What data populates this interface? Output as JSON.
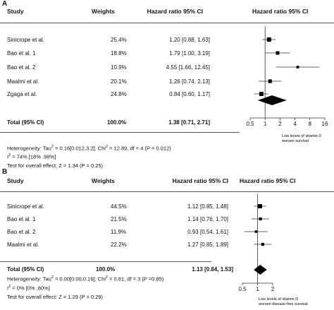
{
  "panels": [
    {
      "letter": "A",
      "headers": {
        "study": "Study",
        "weights": "Weights",
        "hr": "Hazard ratio 95% CI",
        "plot": "Hazard ratio 95% CI"
      },
      "rows": [
        {
          "study": "Sinicrope et al.",
          "weight": "25.4%",
          "ci_text": "1.20 [0.88,  1.63]"
        },
        {
          "study": "Bao et al. 1",
          "weight": "18.8%",
          "ci_text": "1.79 [1.00,  3.19]"
        },
        {
          "study": "Bao et al. 2",
          "weight": "10.9%",
          "ci_text": "4.55 [1.66, 12.45]"
        },
        {
          "study": "Maalmi et al.",
          "weight": "20.1%",
          "ci_text": "1.26 [0.74,  2.13]"
        },
        {
          "study": "Zgaga et al.",
          "weight": "24.8%",
          "ci_text": "0.84 [0.60,  1.17]"
        }
      ],
      "total": {
        "label": "Total (95% CI)",
        "weight": "100.0%",
        "ci_text": "1.38 [0.71,  2.71]"
      },
      "footer": {
        "het_1": "Heterogeneity: Tau",
        "het_sup1": "2",
        "het_2": " = 0.16[0.012,3.2]; Chi",
        "het_sup2": "2",
        "het_3": " = 12.89, df = 4 (P = 0.012)",
        "i2_1": "I",
        "i2_sup": "2",
        "i2_2": " = 74% [18% ,98%]",
        "test": "Test for overall effect: Z = 1.34 (P = 0.25)"
      },
      "annotation": [
        "Low levels of vitamin D",
        "worsen survival"
      ]
    },
    {
      "letter": "B",
      "headers": {
        "study": "Study",
        "weights": "Weights",
        "hr": "Hazard ratio 95% CI",
        "plot": "Hazard ratio 95% CI"
      },
      "rows": [
        {
          "study": "Sinicrope et al.",
          "weight": "44.5%",
          "ci_text": "1.12 [0.85, 1.48]"
        },
        {
          "study": "Bao et al. 1",
          "weight": "21.5%",
          "ci_text": "1.14 [0.76, 1.70]"
        },
        {
          "study": "Bao et al. 2",
          "weight": "11.9%",
          "ci_text": "0.93 [0.54, 1.61]"
        },
        {
          "study": "Maalmi et al.",
          "weight": "22.2%",
          "ci_text": "1.27 [0.85, 1.89]"
        }
      ],
      "total": {
        "label": "Total (95% CI)",
        "weight": "100.0%",
        "ci_text": "1.13 [0.84,  1.53]"
      },
      "footer": {
        "het_1": "Heterogeneity: Tau",
        "het_sup1": "2",
        "het_2": " = 0.00[0.00,0.16]; Chi",
        "het_sup2": "2",
        "het_3": " = 0.81, df = 3 (P =0.85)",
        "i2_1": "I",
        "i2_sup": "2",
        "i2_2": " = 0% [0% ,80%]",
        "test": "Test for overall effect: Z = 1.29 (P = 0.29)"
      },
      "annotation": [
        "Low levels of vitamin D",
        "worsen disease-free survival"
      ]
    }
  ],
  "chart_data": [
    {
      "type": "forest",
      "x_scale": "log",
      "xlim": [
        0.5,
        16
      ],
      "x_ticks": [
        "0.5",
        "1",
        "2",
        "4",
        "8",
        "16"
      ],
      "reference_line": 1,
      "studies": [
        {
          "name": "Sinicrope et al.",
          "hr": 1.2,
          "lo": 0.88,
          "hi": 1.63,
          "weight": 25.4
        },
        {
          "name": "Bao et al. 1",
          "hr": 1.79,
          "lo": 1.0,
          "hi": 3.19,
          "weight": 18.8
        },
        {
          "name": "Bao et al. 2",
          "hr": 4.55,
          "lo": 1.66,
          "hi": 12.45,
          "weight": 10.9
        },
        {
          "name": "Maalmi et al.",
          "hr": 1.26,
          "lo": 0.74,
          "hi": 2.13,
          "weight": 20.1
        },
        {
          "name": "Zgaga et al.",
          "hr": 0.84,
          "lo": 0.6,
          "hi": 1.17,
          "weight": 24.8
        }
      ],
      "pooled": {
        "hr": 1.38,
        "lo": 0.71,
        "hi": 2.71
      }
    },
    {
      "type": "forest",
      "x_scale": "log",
      "xlim": [
        0.5,
        2
      ],
      "x_ticks": [
        "0.5",
        "1",
        "2"
      ],
      "reference_line": 1,
      "studies": [
        {
          "name": "Sinicrope et al.",
          "hr": 1.12,
          "lo": 0.85,
          "hi": 1.48,
          "weight": 44.5
        },
        {
          "name": "Bao et al. 1",
          "hr": 1.14,
          "lo": 0.76,
          "hi": 1.7,
          "weight": 21.5
        },
        {
          "name": "Bao et al. 2",
          "hr": 0.93,
          "lo": 0.54,
          "hi": 1.61,
          "weight": 11.9
        },
        {
          "name": "Maalmi et al.",
          "hr": 1.27,
          "lo": 0.85,
          "hi": 1.89,
          "weight": 22.2
        }
      ],
      "pooled": {
        "hr": 1.13,
        "lo": 0.84,
        "hi": 1.53
      }
    }
  ]
}
